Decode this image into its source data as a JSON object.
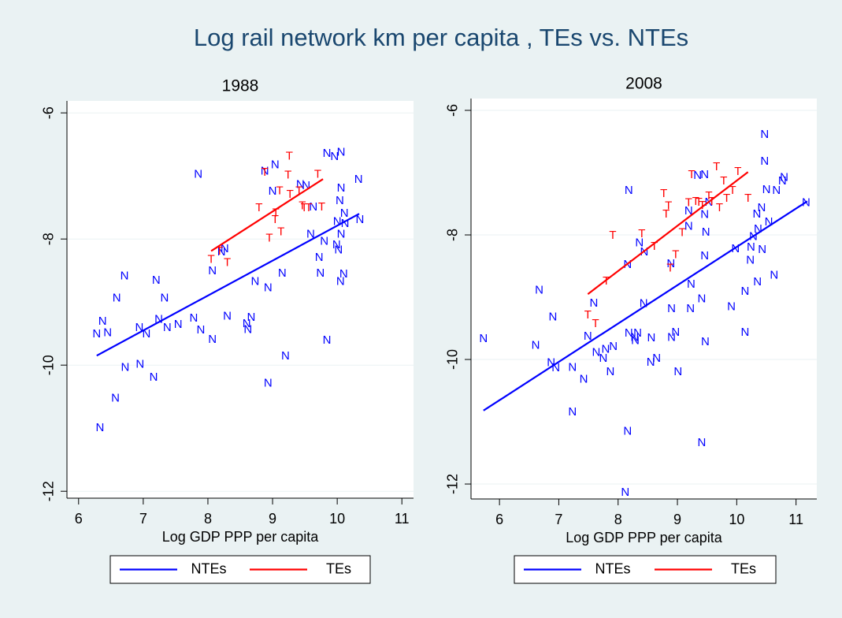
{
  "title": "Log rail network km per capita , TEs vs. NTEs",
  "chart_data": [
    {
      "type": "scatter",
      "title": "1988",
      "x_label": "Log GDP PPP per capita",
      "xlim": [
        5.82,
        11.18
      ],
      "ylim": [
        -12.11,
        -5.81
      ],
      "xticks": [
        6,
        7,
        8,
        9,
        10,
        11
      ],
      "yticks": [
        -6,
        -8,
        -10,
        -12
      ],
      "grid": true,
      "series": [
        {
          "name": "NTEs",
          "color": "#0000ff",
          "marker": "N",
          "x": [
            6.28,
            6.37,
            6.45,
            6.33,
            6.57,
            6.59,
            6.71,
            6.72,
            6.95,
            6.94,
            7.05,
            7.16,
            7.2,
            7.24,
            7.33,
            7.37,
            7.54,
            7.78,
            7.85,
            7.89,
            8.07,
            8.07,
            8.21,
            8.26,
            8.3,
            8.6,
            8.62,
            8.67,
            8.73,
            8.93,
            8.93,
            8.88,
            9.04,
            9.0,
            9.15,
            9.2,
            9.43,
            9.52,
            9.63,
            9.59,
            9.72,
            9.74,
            9.8,
            9.84,
            9.84,
            9.96,
            10.06,
            10.04,
            10.06,
            10.0,
            10.06,
            9.99,
            10.02,
            10.1,
            10.05,
            10.11,
            10.12,
            10.33,
            10.35
          ],
          "values": [
            -9.51,
            -9.31,
            -9.49,
            -11.0,
            -10.53,
            -8.94,
            -8.59,
            -10.04,
            -9.99,
            -9.41,
            -9.51,
            -10.2,
            -8.66,
            -9.28,
            -8.94,
            -9.41,
            -9.36,
            -9.26,
            -6.98,
            -9.45,
            -9.6,
            -8.51,
            -8.21,
            -8.16,
            -9.23,
            -9.35,
            -9.44,
            -9.25,
            -8.68,
            -8.78,
            -10.29,
            -6.93,
            -6.83,
            -7.25,
            -8.55,
            -9.86,
            -7.14,
            -7.16,
            -7.5,
            -7.93,
            -8.3,
            -8.55,
            -8.04,
            -9.61,
            -6.65,
            -6.7,
            -6.63,
            -7.4,
            -7.2,
            -7.73,
            -7.93,
            -8.1,
            -8.18,
            -8.56,
            -8.68,
            -7.6,
            -7.76,
            -7.06,
            -7.7
          ],
          "fit_x": [
            6.28,
            10.34
          ],
          "fit_values": [
            -9.85,
            -7.6
          ]
        },
        {
          "name": "TEs",
          "color": "#ff0000",
          "marker": "T",
          "x": [
            8.05,
            8.18,
            8.3,
            8.79,
            8.88,
            8.95,
            9.04,
            9.05,
            9.11,
            9.13,
            9.26,
            9.24,
            9.27,
            9.41,
            9.46,
            9.49,
            9.56,
            9.7,
            9.76
          ],
          "values": [
            -8.33,
            -8.2,
            -8.38,
            -7.51,
            -6.95,
            -7.99,
            -7.7,
            -7.59,
            -7.24,
            -7.89,
            -6.69,
            -6.99,
            -7.3,
            -7.24,
            -7.48,
            -7.51,
            -7.51,
            -6.98,
            -7.5
          ],
          "fit_x": [
            8.05,
            9.78
          ],
          "fit_values": [
            -8.19,
            -7.05
          ]
        }
      ]
    },
    {
      "type": "scatter",
      "title": "2008",
      "x_label": "Log GDP PPP per capita",
      "xlim": [
        5.52,
        11.35
      ],
      "ylim": [
        -12.24,
        -5.81
      ],
      "xticks": [
        6,
        7,
        8,
        9,
        10,
        11
      ],
      "yticks": [
        -6,
        -8,
        -10,
        -12
      ],
      "grid": true,
      "series": [
        {
          "name": "NTEs",
          "color": "#0000ff",
          "marker": "N",
          "x": [
            5.73,
            6.61,
            6.67,
            6.87,
            6.95,
            6.9,
            7.23,
            7.23,
            7.42,
            7.49,
            7.59,
            7.63,
            7.75,
            7.79,
            7.87,
            7.92,
            8.12,
            8.16,
            8.18,
            8.16,
            8.18,
            8.28,
            8.29,
            8.36,
            8.43,
            8.44,
            8.33,
            8.55,
            8.56,
            8.65,
            8.9,
            8.9,
            8.89,
            8.97,
            9.01,
            9.19,
            9.19,
            9.22,
            9.23,
            9.34,
            9.41,
            9.41,
            9.47,
            9.46,
            9.48,
            9.46,
            9.46,
            9.53,
            9.91,
            9.98,
            10.14,
            10.14,
            10.23,
            10.28,
            10.24,
            10.35,
            10.34,
            10.36,
            10.42,
            10.43,
            10.47,
            10.47,
            10.5,
            10.54,
            10.63,
            10.67,
            10.77,
            10.8,
            11.17
          ],
          "values": [
            -9.67,
            -9.78,
            -8.89,
            -10.06,
            -10.14,
            -9.32,
            -10.13,
            -10.85,
            -10.32,
            -9.63,
            -9.1,
            -9.89,
            -9.99,
            -9.84,
            -10.2,
            -9.8,
            -12.14,
            -11.16,
            -7.29,
            -8.48,
            -9.58,
            -9.65,
            -9.7,
            -8.13,
            -9.11,
            -8.28,
            -9.58,
            -10.05,
            -9.66,
            -9.99,
            -9.65,
            -9.19,
            -8.47,
            -9.57,
            -10.2,
            -7.87,
            -7.62,
            -9.19,
            -8.8,
            -7.05,
            -11.34,
            -9.03,
            -9.72,
            -8.34,
            -7.96,
            -7.68,
            -7.04,
            -7.48,
            -9.16,
            -8.23,
            -8.91,
            -9.57,
            -8.41,
            -8.03,
            -8.2,
            -8.76,
            -7.67,
            -7.91,
            -7.57,
            -8.24,
            -6.82,
            -6.39,
            -7.28,
            -7.8,
            -8.65,
            -7.29,
            -7.14,
            -7.08,
            -7.49
          ],
          "fit_x": [
            5.73,
            11.19
          ],
          "fit_values": [
            -10.82,
            -7.46
          ]
        },
        {
          "name": "TEs",
          "color": "#ff0000",
          "marker": "T",
          "x": [
            7.49,
            7.62,
            7.8,
            7.91,
            8.4,
            8.61,
            8.77,
            8.81,
            8.85,
            8.88,
            8.97,
            9.08,
            9.19,
            9.24,
            9.31,
            9.36,
            9.42,
            9.53,
            9.58,
            9.66,
            9.71,
            9.78,
            9.83,
            9.93,
            10.02,
            10.19
          ],
          "values": [
            -9.29,
            -9.43,
            -8.75,
            -8.01,
            -7.99,
            -8.19,
            -7.34,
            -7.67,
            -7.54,
            -8.54,
            -8.32,
            -7.97,
            -7.49,
            -7.04,
            -7.47,
            -7.48,
            -7.53,
            -7.38,
            -7.47,
            -6.91,
            -7.57,
            -7.14,
            -7.42,
            -7.29,
            -6.99,
            -7.42
          ],
          "fit_x": [
            7.49,
            10.19
          ],
          "fit_values": [
            -8.95,
            -6.99
          ]
        }
      ]
    }
  ]
}
